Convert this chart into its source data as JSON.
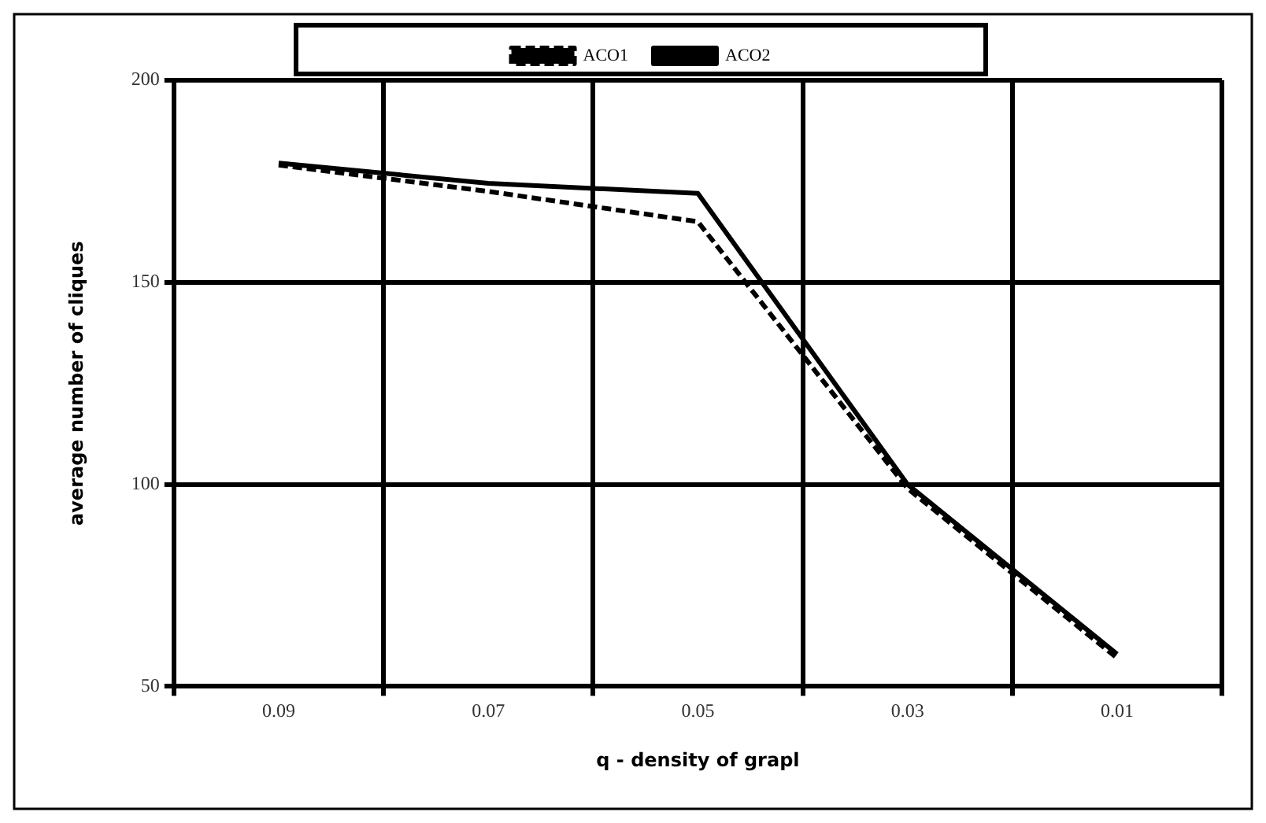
{
  "chart_data": {
    "type": "line",
    "xlabel": "q - density of grapl",
    "ylabel": "average number of cliques",
    "categories": [
      "0.09",
      "0.07",
      "0.05",
      "0.03",
      "0.01"
    ],
    "series": [
      {
        "name": "ACO1",
        "color": "#000000",
        "line_style": "dashed",
        "values": [
          179,
          172.5,
          165,
          99,
          57
        ]
      },
      {
        "name": "ACO2",
        "color": "#000000",
        "line_style": "solid",
        "values": [
          179.5,
          174.5,
          172,
          100,
          58
        ]
      }
    ],
    "ylim": [
      50,
      200
    ],
    "yticks": [
      50,
      100,
      150,
      200
    ],
    "grid": true,
    "legend": "top",
    "marker": "none"
  }
}
